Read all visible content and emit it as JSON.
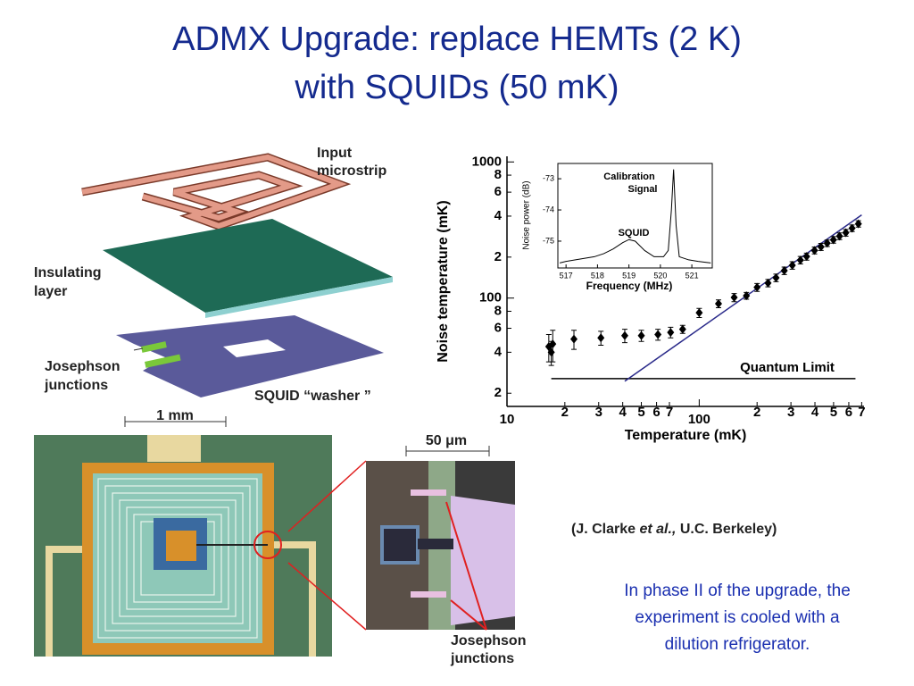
{
  "title": [
    "ADMX  Upgrade:  replace HEMTs (2 K)",
    "with SQUIDs (50 mK)"
  ],
  "diagram": {
    "input": [
      "Input",
      "microstrip"
    ],
    "insulating": [
      "Insulating",
      "layer"
    ],
    "junctions": [
      "Josephson",
      "junctions"
    ],
    "washer": "SQUID “washer ”"
  },
  "photos": {
    "scale_left": "1 mm",
    "scale_right": "50 μm",
    "junctions": [
      "Josephson",
      "junctions"
    ]
  },
  "credit": [
    "(J. Clarke ",
    "et al.,",
    " U.C. Berkeley)"
  ],
  "caption": [
    "In phase II of the upgrade, the",
    "experiment is cooled with a",
    "dilution refrigerator."
  ],
  "chart_data": [
    {
      "type": "scatter",
      "xlabel": "Temperature (mK)",
      "ylabel": "Noise temperature (mK)",
      "log_x": true,
      "log_y": true,
      "xlim": [
        10,
        720
      ],
      "ylim": [
        16,
        1100
      ],
      "xticks": [
        10,
        {
          "value": 20,
          "label": "2"
        },
        {
          "value": 30,
          "label": "3"
        },
        {
          "value": 40,
          "label": "4"
        },
        {
          "value": 50,
          "label": "5"
        },
        {
          "value": 60,
          "label": "6"
        },
        {
          "value": 70,
          "label": "7"
        },
        100,
        {
          "value": 200,
          "label": "2"
        },
        {
          "value": 300,
          "label": "3"
        },
        {
          "value": 400,
          "label": "4"
        },
        {
          "value": 500,
          "label": "5"
        },
        {
          "value": 600,
          "label": "6"
        },
        {
          "value": 700,
          "label": "7"
        }
      ],
      "yticks": [
        {
          "value": 20,
          "label": "2"
        },
        {
          "value": 40,
          "label": "4"
        },
        {
          "value": 60,
          "label": "6"
        },
        {
          "value": 80,
          "label": "8"
        },
        100,
        {
          "value": 200,
          "label": "2"
        },
        {
          "value": 400,
          "label": "4"
        },
        {
          "value": 600,
          "label": "6"
        },
        {
          "value": 800,
          "label": "8"
        },
        1000
      ],
      "series": [
        {
          "color": "#000000",
          "x": [
            16.5,
            17,
            17.3,
            22.3,
            30.8,
            41,
            50,
            61,
            71,
            82,
            100,
            126,
            152,
            176,
            200,
            228,
            251,
            277,
            305,
            336,
            362,
            398,
            430,
            463,
            499,
            537,
            579,
            624,
            673
          ],
          "values": [
            44,
            40,
            46,
            50,
            51,
            53,
            53,
            54,
            56,
            59,
            78,
            91,
            101,
            104,
            120,
            129,
            141,
            159,
            174,
            190,
            202,
            224,
            238,
            253,
            268,
            285,
            302,
            326,
            351
          ],
          "errors": [
            10,
            8,
            12,
            8,
            6,
            6,
            5,
            5,
            5,
            4,
            6,
            6,
            7,
            6,
            8,
            8,
            9,
            10,
            11,
            12,
            12,
            13,
            14,
            14,
            15,
            16,
            17,
            18,
            19
          ]
        }
      ],
      "lines": [
        {
          "color": "#000000",
          "x": [
            17,
            650
          ],
          "values": [
            25.6,
            25.6
          ]
        },
        {
          "color": "#2a2a8a",
          "x": [
            41,
            700
          ],
          "values": [
            24.5,
            408
          ]
        }
      ],
      "annotation": "Quantum Limit"
    },
    {
      "type": "line",
      "xlabel": "Frequency (MHz)",
      "ylabel": "Noise power (dB)",
      "xlim": [
        516.74,
        521.65
      ],
      "ylim": [
        -75.86,
        -72.51
      ],
      "xticks": [
        517,
        518,
        519,
        520,
        521
      ],
      "yticks": [
        -75,
        -74,
        -73
      ],
      "series": [
        {
          "color": "#000000",
          "x": [
            516.8,
            517,
            517.3,
            517.6,
            517.9,
            518.2,
            518.5,
            518.8,
            519,
            519.2,
            519.5,
            519.8,
            520.1,
            520.25,
            520.35,
            520.42,
            520.5,
            520.6,
            520.9,
            521.2,
            521.6
          ],
          "values": [
            -75.7,
            -75.65,
            -75.6,
            -75.55,
            -75.5,
            -75.4,
            -75.25,
            -75.05,
            -74.95,
            -75.0,
            -75.3,
            -75.5,
            -75.5,
            -75.3,
            -74,
            -72.7,
            -74.5,
            -75.5,
            -75.6,
            -75.65,
            -75.7
          ]
        }
      ],
      "annotations": [
        [
          "Calibration",
          "Signal"
        ],
        "SQUID"
      ]
    }
  ]
}
